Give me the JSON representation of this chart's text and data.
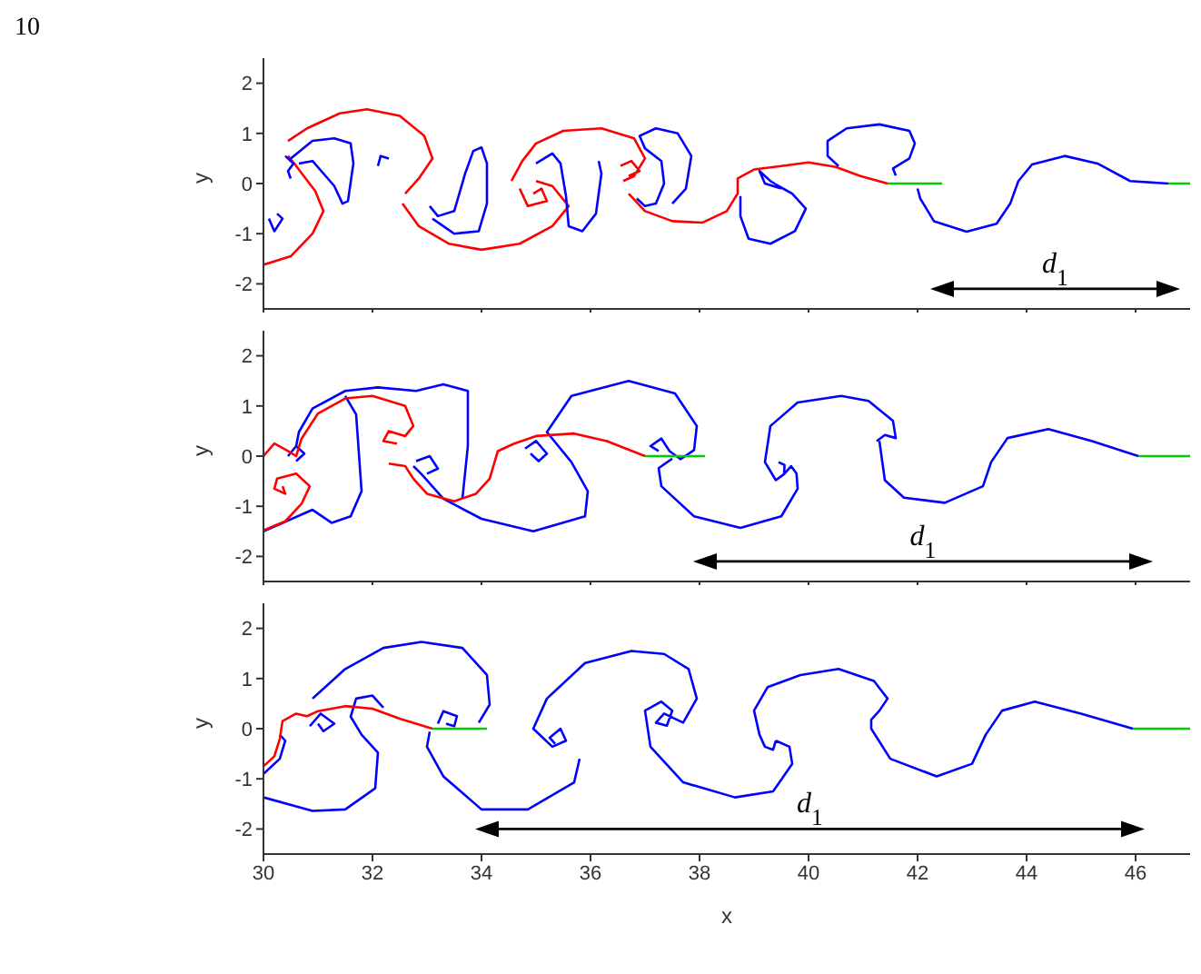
{
  "chart_data": [
    {
      "type": "line",
      "annotations": [
        "10",
        "d$_{1}$"
      ],
      "ylabel": "y",
      "xlim": [
        30,
        47
      ],
      "xticks": [
        30,
        32,
        34,
        36,
        38,
        40,
        42,
        44,
        46
      ],
      "ylim": [
        -2.5,
        2.5
      ],
      "yticks": [
        -2,
        -1,
        0,
        1,
        2
      ],
      "tick_labels": "y",
      "marker": "none",
      "line_style": "solid",
      "series": [
        {
          "color": "#ff0000",
          "x": [
            30,
            30.5,
            30.9,
            31.1,
            30.95,
            30.6,
            30.45,
            null,
            30.45,
            30.8,
            31.4,
            31.9,
            32.5,
            32.95,
            33.1,
            32.85,
            32.6,
            null,
            32.55,
            32.85,
            33.4,
            34.0,
            34.7,
            35.3,
            35.6,
            35.3,
            35.0,
            null,
            34.7,
            34.85,
            35.2,
            35.1,
            34.95,
            null,
            34.55,
            34.75,
            35.0,
            35.5,
            36.2,
            36.8,
            37.0,
            36.8,
            36.6,
            null,
            36.55,
            36.75,
            36.9,
            36.7,
            null,
            36.7,
            37.0,
            37.5,
            38.05,
            38.5,
            38.7,
            38.7,
            39.0,
            39.5,
            40.0,
            40.5,
            40.95,
            41.45
          ],
          "values": [
            -1.62,
            -1.45,
            -1.0,
            -0.55,
            -0.15,
            0.35,
            0.55,
            null,
            0.85,
            1.1,
            1.4,
            1.48,
            1.35,
            0.95,
            0.5,
            0.1,
            -0.2,
            null,
            -0.4,
            -0.85,
            -1.2,
            -1.32,
            -1.2,
            -0.85,
            -0.45,
            -0.05,
            0.05,
            null,
            -0.1,
            -0.45,
            -0.35,
            -0.1,
            -0.2,
            null,
            0.05,
            0.45,
            0.8,
            1.05,
            1.1,
            0.9,
            0.5,
            0.15,
            0.05,
            null,
            0.35,
            0.45,
            0.25,
            0.15,
            null,
            -0.2,
            -0.55,
            -0.75,
            -0.78,
            -0.55,
            -0.2,
            0.1,
            0.28,
            0.35,
            0.42,
            0.33,
            0.15,
            0
          ]
        },
        {
          "color": "#0000ff",
          "x": [
            30.1,
            30.2,
            30.35,
            30.25,
            null,
            30.5,
            30.9,
            31.3,
            31.6,
            31.65,
            31.55,
            31.45,
            31.3,
            30.9,
            30.65,
            null,
            30.4,
            30.55,
            30.45,
            30.5,
            null,
            33.05,
            33.2,
            33.5,
            33.7,
            33.85,
            34.0,
            34.1,
            34.1,
            33.95,
            33.5,
            33.1,
            null,
            32.1,
            32.15,
            32.3,
            null,
            36.85,
            37.0,
            37.2,
            37.35,
            37.3,
            37.0,
            36.9,
            37.2,
            37.6,
            37.85,
            37.75,
            37.5,
            null,
            35.0,
            35.3,
            35.45,
            35.55,
            35.6,
            35.85,
            36.1,
            36.2,
            36.15,
            null,
            38.75,
            38.75,
            38.9,
            39.3,
            39.75,
            39.95,
            39.7,
            39.45,
            39.3,
            39.1,
            39.2,
            39.5,
            null,
            41.6,
            41.55,
            41.85,
            41.95,
            41.85,
            41.3,
            40.7,
            40.35,
            40.35,
            40.55,
            null,
            42.0,
            42.05,
            42.3,
            42.9,
            43.45,
            43.7,
            43.85,
            44.1,
            44.7,
            45.3,
            45.9,
            46.6
          ],
          "values": [
            -0.7,
            -0.95,
            -0.7,
            -0.6,
            null,
            0.5,
            0.85,
            0.9,
            0.8,
            0.4,
            -0.35,
            -0.4,
            -0.05,
            0.45,
            0.4,
            null,
            0.55,
            0.4,
            0.25,
            0.1,
            null,
            -0.45,
            -0.65,
            -0.55,
            0.2,
            0.65,
            0.72,
            0.4,
            -0.4,
            -0.95,
            -1.0,
            -0.7,
            null,
            0.35,
            0.55,
            0.5,
            null,
            -0.3,
            -0.45,
            -0.4,
            0.0,
            0.45,
            0.7,
            0.95,
            1.1,
            1.0,
            0.55,
            -0.1,
            -0.4,
            null,
            0.4,
            0.6,
            0.4,
            -0.25,
            -0.85,
            -0.95,
            -0.6,
            0.2,
            0.45,
            null,
            -0.25,
            -0.65,
            -1.1,
            -1.2,
            -0.95,
            -0.5,
            -0.2,
            -0.05,
            0.05,
            0.25,
            0.0,
            -0.1,
            null,
            0.16,
            0.3,
            0.5,
            0.8,
            1.05,
            1.18,
            1.1,
            0.85,
            0.55,
            0.35,
            null,
            -0.1,
            -0.3,
            -0.75,
            -0.96,
            -0.8,
            -0.4,
            0.05,
            0.38,
            0.55,
            0.4,
            0.05,
            0
          ]
        },
        {
          "color": "#00cc00",
          "x": [
            41.45,
            42.45,
            null,
            46.6,
            47
          ],
          "values": [
            0,
            0,
            null,
            0,
            0
          ]
        },
        {
          "color": "#000000",
          "marker": "triangle",
          "x": [
            42.45,
            46.6
          ],
          "values": [
            -2.1,
            -2.1
          ]
        }
      ]
    },
    {
      "type": "line",
      "annotations": [
        "d$_{1}$"
      ],
      "ylabel": "y",
      "xlim": [
        30,
        47
      ],
      "xticks": [
        30,
        32,
        34,
        36,
        38,
        40,
        42,
        44,
        46
      ],
      "ylim": [
        -2.5,
        2.5
      ],
      "yticks": [
        -2,
        -1,
        0,
        1,
        2
      ],
      "tick_labels": "y",
      "marker": "none",
      "line_style": "solid",
      "series": [
        {
          "color": "#0000ff",
          "x": [
            41.3,
            41.4,
            41.75,
            42.5,
            43.2,
            43.35,
            43.65,
            44.4,
            45.2,
            46.05,
            null,
            41.25,
            41.4,
            41.6,
            41.55,
            41.1,
            40.6,
            39.8,
            39.3,
            39.2,
            39.4,
            39.55,
            39.56,
            39.45,
            null,
            39.55,
            39.68,
            39.78,
            39.8,
            39.5,
            38.75,
            37.9,
            37.3,
            37.25,
            37.5,
            null,
            37.25,
            37.1,
            37.3,
            37.45,
            37.65,
            37.9,
            37.95,
            37.55,
            36.7,
            35.65,
            35.2,
            35.65,
            35.95,
            35.9,
            34.95,
            34.0,
            33.3,
            32.9,
            32.75,
            null,
            33.65,
            33.75,
            33.75,
            33.3,
            32.8,
            32.1,
            31.5,
            30.9,
            30.65,
            30.6,
            null,
            30,
            30.9,
            31.25,
            31.6,
            31.8,
            31.7,
            31.5,
            null,
            34.8,
            35.0,
            35.2,
            35.05,
            34.9,
            null,
            32.8,
            33.05,
            33.2,
            33.0,
            null,
            30.45,
            30.6,
            30.75,
            30.6
          ],
          "values": [
            0.3,
            -0.48,
            -0.83,
            -0.93,
            -0.6,
            -0.12,
            0.36,
            0.54,
            0.3,
            0,
            null,
            0.3,
            0.42,
            0.36,
            0.7,
            1.1,
            1.2,
            1.07,
            0.6,
            -0.12,
            -0.48,
            -0.36,
            -0.18,
            -0.12,
            null,
            -0.36,
            -0.2,
            -0.35,
            -0.65,
            -1.2,
            -1.43,
            -1.2,
            -0.6,
            -0.24,
            -0.05,
            null,
            0.1,
            0.2,
            0.35,
            0.1,
            -0.06,
            0.12,
            0.6,
            1.25,
            1.5,
            1.2,
            0.48,
            -0.12,
            -0.7,
            -1.2,
            -1.5,
            -1.25,
            -0.85,
            -0.36,
            -0.2,
            null,
            -0.85,
            0.2,
            1.3,
            1.43,
            1.3,
            1.37,
            1.3,
            0.95,
            0.48,
            0.2,
            null,
            -1.5,
            -1.07,
            -1.33,
            -1.2,
            -0.7,
            0.83,
            1.2,
            null,
            0.15,
            0.3,
            0.05,
            -0.1,
            0.05,
            null,
            -0.1,
            0.0,
            -0.25,
            -0.35,
            null,
            0.0,
            0.2,
            0.05,
            -0.1
          ]
        },
        {
          "color": "#ff0000",
          "x": [
            30,
            30.4,
            30.7,
            30.85,
            30.6,
            30.25,
            30.2,
            30.4,
            30.35,
            null,
            30,
            30.2,
            30.45,
            30.6,
            30.7,
            31.0,
            31.5,
            32.0,
            32.6,
            32.75,
            32.6,
            32.3,
            32.2,
            32.45,
            null,
            32.3,
            32.6,
            32.75,
            33.0,
            33.5,
            33.9,
            34.15,
            34.3,
            34.6,
            35.0,
            35.7,
            36.3,
            37.0
          ],
          "values": [
            -1.48,
            -1.3,
            -0.95,
            -0.6,
            -0.35,
            -0.45,
            -0.65,
            -0.75,
            -0.6,
            null,
            0,
            0.25,
            0.1,
            0,
            0.35,
            0.85,
            1.15,
            1.2,
            1.0,
            0.6,
            0.4,
            0.5,
            0.3,
            0.25,
            null,
            -0.15,
            -0.2,
            -0.45,
            -0.75,
            -0.9,
            -0.75,
            -0.45,
            0.1,
            0.25,
            0.4,
            0.45,
            0.3,
            0
          ]
        },
        {
          "color": "#00cc00",
          "x": [
            37.0,
            38.1,
            null,
            46.05,
            47
          ],
          "values": [
            0,
            0,
            null,
            0,
            0
          ]
        },
        {
          "color": "#000000",
          "marker": "triangle",
          "x": [
            38.1,
            46.1
          ],
          "values": [
            -2.1,
            -2.1
          ]
        }
      ]
    },
    {
      "type": "line",
      "annotations": [
        "d$_{1}$"
      ],
      "xlabel": "x",
      "ylabel": "y",
      "xlim": [
        30,
        47
      ],
      "xticks": [
        30,
        32,
        34,
        36,
        38,
        40,
        42,
        44,
        46
      ],
      "ylim": [
        -2.5,
        2.5
      ],
      "yticks": [
        -2,
        -1,
        0,
        1,
        2
      ],
      "marker": "none",
      "line_style": "solid",
      "series": [
        {
          "color": "#0000ff",
          "x": [
            39.4,
            39.35,
            39.2,
            39.1,
            39.0,
            39.25,
            39.85,
            40.55,
            41.2,
            41.45,
            41.3,
            41.15,
            41.15,
            41.5,
            42.35,
            43.0,
            43.25,
            43.55,
            44.15,
            45.0,
            45.95,
            null,
            39.4,
            39.65,
            39.7,
            39.35,
            38.65,
            37.7,
            37.1,
            37.0,
            37.3,
            37.5,
            37.4,
            37.2,
            37.35,
            37.7,
            37.95,
            37.8,
            37.35,
            36.75,
            35.9,
            35.2,
            34.95,
            35.3,
            35.55,
            35.45,
            35.25,
            35.35,
            null,
            35.8,
            35.7,
            34.85,
            34.0,
            33.3,
            33.0,
            33.05,
            null,
            30.9,
            31.5,
            32.2,
            32.9,
            33.65,
            34.1,
            34.15,
            33.95,
            null,
            30,
            30.9,
            31.5,
            32.05,
            32.1,
            31.8,
            31.6,
            31.7,
            32.0,
            32.2,
            null,
            30,
            30.3,
            30.4,
            30.3,
            null,
            33.2,
            33.3,
            33.55,
            33.5,
            33.35,
            null,
            30.85,
            31.05,
            31.3,
            31.1,
            31.0
          ],
          "values": [
            -0.24,
            -0.42,
            -0.36,
            -0.12,
            0.36,
            0.83,
            1.07,
            1.19,
            0.95,
            0.6,
            0.36,
            0.18,
            0,
            -0.6,
            -0.95,
            -0.7,
            -0.12,
            0.36,
            0.54,
            0.3,
            0,
            null,
            -0.24,
            -0.36,
            -0.7,
            -1.25,
            -1.37,
            -1.07,
            -0.36,
            0.36,
            0.54,
            0.36,
            0.06,
            0.12,
            0.3,
            0.12,
            0.6,
            1.19,
            1.49,
            1.55,
            1.31,
            0.6,
            0,
            -0.36,
            -0.24,
            0,
            -0.18,
            -0.3,
            null,
            -0.6,
            -1.07,
            -1.61,
            -1.61,
            -0.95,
            -0.36,
            -0.06,
            null,
            0.6,
            1.19,
            1.61,
            1.73,
            1.61,
            1.07,
            0.48,
            0.12,
            null,
            -1.37,
            -1.64,
            -1.61,
            -1.19,
            -0.48,
            -0.12,
            0.24,
            0.6,
            0.66,
            0.42,
            null,
            -0.9,
            -0.6,
            -0.24,
            -0.12,
            null,
            0.1,
            0.35,
            0.25,
            0.05,
            0.1,
            null,
            0.05,
            0.3,
            0.1,
            -0.05,
            0.1
          ]
        },
        {
          "color": "#ff0000",
          "x": [
            30,
            30.2,
            30.3,
            30.35,
            30.6,
            30.8,
            31.0,
            31.5,
            32.0,
            32.5,
            33.1
          ],
          "values": [
            -0.75,
            -0.55,
            -0.2,
            0.15,
            0.3,
            0.25,
            0.35,
            0.45,
            0.4,
            0.2,
            0.0
          ]
        },
        {
          "color": "#00cc00",
          "x": [
            33.1,
            34.1,
            null,
            45.95,
            47
          ],
          "values": [
            0,
            0,
            null,
            0,
            0
          ]
        },
        {
          "color": "#000000",
          "marker": "triangle",
          "x": [
            34.1,
            45.95
          ],
          "values": [
            -2.0,
            -2.0
          ]
        }
      ]
    }
  ]
}
